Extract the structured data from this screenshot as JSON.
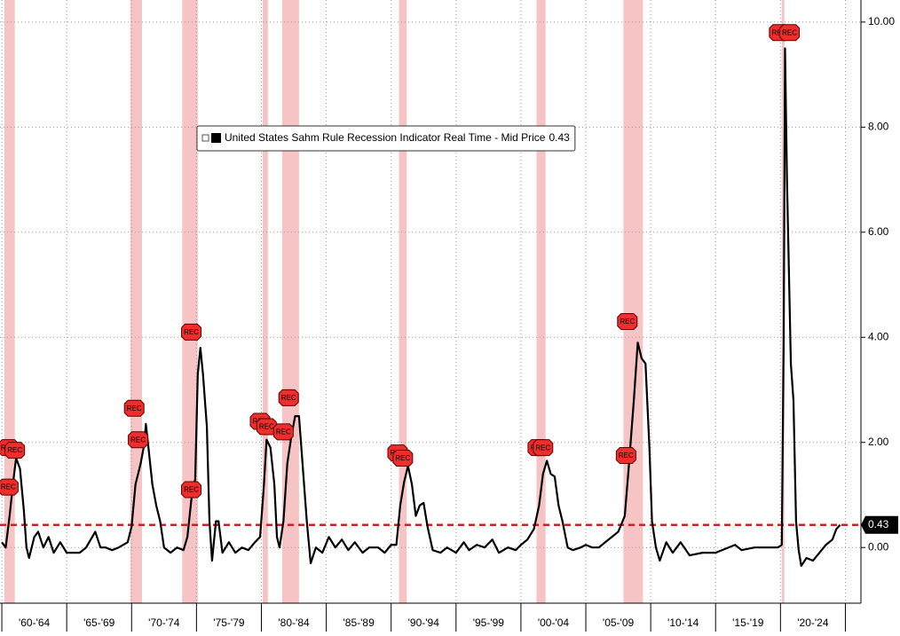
{
  "chart_data": {
    "type": "line",
    "legend_text": "United States Sahm Rule Recession Indicator Real Time - Mid Price",
    "last_value": 0.43,
    "xlim": [
      1959.86,
      2026.2
    ],
    "xticks": [
      1960,
      1965,
      1970,
      1975,
      1980,
      1985,
      1990,
      1995,
      2000,
      2005,
      2010,
      2015,
      2020,
      2025
    ],
    "period_labels": [
      "'60-'64",
      "'65-'69",
      "'70-'74",
      "'75-'79",
      "'80-'84",
      "'85-'89",
      "'90-'94",
      "'95-'99",
      "'00-'04",
      "'05-'09",
      "'10-'14",
      "'15-'19",
      "'20-'24"
    ],
    "ylim": [
      -1.06,
      10.42
    ],
    "yticks": [
      {
        "value": 0,
        "label": "0.00"
      },
      {
        "value": 2,
        "label": "2.00"
      },
      {
        "value": 4,
        "label": "4.00"
      },
      {
        "value": 6,
        "label": "6.00"
      },
      {
        "value": 8,
        "label": "8.00"
      },
      {
        "value": 10,
        "label": "10.00"
      }
    ],
    "grid": true,
    "recession_color": "#f6c4c4",
    "recessions": [
      [
        1960.2,
        1961.0
      ],
      [
        1969.9,
        1970.8
      ],
      [
        1973.9,
        1975.1
      ],
      [
        1980.1,
        1980.5
      ],
      [
        1981.6,
        1982.9
      ],
      [
        1990.6,
        1991.2
      ],
      [
        2001.2,
        2001.9
      ],
      [
        2007.9,
        2009.4
      ],
      [
        2020.1,
        2020.3
      ]
    ],
    "annotations": [
      {
        "label": "REC",
        "x": 1960.5,
        "y": 1.9
      },
      {
        "label": "REC",
        "x": 1961.0,
        "y": 1.85
      },
      {
        "label": "REC",
        "x": 1960.5,
        "y": 1.15
      },
      {
        "label": "REC",
        "x": 1970.2,
        "y": 2.65
      },
      {
        "label": "REC",
        "x": 1970.5,
        "y": 2.05
      },
      {
        "label": "REC",
        "x": 1974.6,
        "y": 4.1
      },
      {
        "label": "REC",
        "x": 1974.6,
        "y": 1.1
      },
      {
        "label": "REC",
        "x": 1979.9,
        "y": 2.4
      },
      {
        "label": "REC",
        "x": 1980.4,
        "y": 2.3
      },
      {
        "label": "REC",
        "x": 1981.7,
        "y": 2.2
      },
      {
        "label": "REC",
        "x": 1982.1,
        "y": 2.85
      },
      {
        "label": "REC",
        "x": 1990.5,
        "y": 1.8
      },
      {
        "label": "REC",
        "x": 1990.9,
        "y": 1.7
      },
      {
        "label": "REC",
        "x": 2001.3,
        "y": 1.9
      },
      {
        "label": "REC",
        "x": 2001.7,
        "y": 1.9
      },
      {
        "label": "REC",
        "x": 2008.2,
        "y": 4.3
      },
      {
        "label": "REC",
        "x": 2008.1,
        "y": 1.75
      },
      {
        "label": "REC",
        "x": 2019.9,
        "y": 9.8
      },
      {
        "label": "REC",
        "x": 2020.7,
        "y": 9.8
      }
    ],
    "series": [
      {
        "name": "United States Sahm Rule Recession Indicator Real Time - Mid Price",
        "color": "#000000",
        "x": [
          1960.0,
          1960.3,
          1960.6,
          1960.9,
          1961.1,
          1961.4,
          1961.7,
          1961.9,
          1962.1,
          1962.5,
          1962.8,
          1963.2,
          1963.6,
          1964.0,
          1964.5,
          1965.0,
          1966.0,
          1966.5,
          1967.2,
          1967.6,
          1968.0,
          1968.5,
          1969.0,
          1969.7,
          1970.0,
          1970.3,
          1970.7,
          1971.0,
          1971.1,
          1971.3,
          1971.6,
          1971.9,
          1972.2,
          1972.5,
          1973.0,
          1973.5,
          1974.0,
          1974.3,
          1974.6,
          1974.9,
          1975.1,
          1975.3,
          1975.5,
          1975.8,
          1976.0,
          1976.2,
          1976.5,
          1976.7,
          1977.0,
          1977.5,
          1978.0,
          1978.5,
          1979.0,
          1979.5,
          1979.9,
          1980.2,
          1980.4,
          1980.7,
          1981.0,
          1981.2,
          1981.4,
          1981.7,
          1982.0,
          1982.3,
          1982.6,
          1982.9,
          1983.2,
          1983.5,
          1983.8,
          1984.2,
          1984.7,
          1985.2,
          1985.7,
          1986.2,
          1986.7,
          1987.2,
          1987.8,
          1988.3,
          1989.0,
          1989.5,
          1990.0,
          1990.4,
          1990.7,
          1991.0,
          1991.3,
          1991.6,
          1991.9,
          1992.2,
          1992.5,
          1992.8,
          1993.2,
          1993.8,
          1994.3,
          1995.0,
          1995.6,
          1996.0,
          1996.6,
          1997.2,
          1997.8,
          1998.3,
          1999.0,
          1999.6,
          2000.0,
          2000.5,
          2001.0,
          2001.4,
          2001.7,
          2002.0,
          2002.3,
          2002.6,
          2002.9,
          2003.2,
          2003.6,
          2004.0,
          2004.6,
          2005.0,
          2005.5,
          2006.0,
          2006.5,
          2007.0,
          2007.5,
          2008.0,
          2008.3,
          2008.7,
          2009.0,
          2009.3,
          2009.6,
          2009.9,
          2010.1,
          2010.4,
          2010.7,
          2011.2,
          2011.7,
          2012.3,
          2013.0,
          2014.0,
          2015.0,
          2016.0,
          2016.5,
          2017.0,
          2018.0,
          2019.0,
          2019.8,
          2020.1,
          2020.25,
          2020.35,
          2020.5,
          2020.8,
          2021.0,
          2021.2,
          2021.4,
          2021.6,
          2022.0,
          2022.5,
          2023.0,
          2023.5,
          2024.0,
          2024.3,
          2024.6
        ],
        "values": [
          0.1,
          0.0,
          0.6,
          1.3,
          1.7,
          1.5,
          0.7,
          0.0,
          -0.2,
          0.2,
          0.3,
          0.0,
          0.2,
          -0.1,
          0.1,
          -0.1,
          -0.1,
          0.0,
          0.3,
          0.0,
          0.0,
          -0.05,
          0.0,
          0.1,
          0.4,
          1.2,
          1.6,
          2.0,
          2.35,
          1.9,
          1.2,
          0.8,
          0.5,
          0.0,
          -0.1,
          0.0,
          -0.05,
          0.2,
          0.9,
          1.3,
          3.3,
          3.8,
          3.3,
          2.3,
          0.5,
          -0.25,
          0.5,
          0.5,
          -0.1,
          0.1,
          -0.1,
          0.0,
          -0.05,
          0.1,
          0.2,
          1.2,
          2.05,
          1.9,
          1.2,
          0.2,
          0.0,
          0.5,
          1.6,
          2.1,
          2.5,
          2.5,
          1.5,
          0.5,
          -0.3,
          0.0,
          -0.1,
          0.2,
          0.0,
          0.15,
          -0.05,
          0.1,
          -0.1,
          0.0,
          0.0,
          -0.1,
          0.05,
          0.05,
          0.8,
          1.25,
          1.55,
          1.2,
          0.6,
          0.8,
          0.85,
          0.4,
          -0.05,
          -0.1,
          0.0,
          -0.1,
          0.1,
          -0.05,
          0.05,
          0.0,
          0.15,
          -0.1,
          0.0,
          -0.05,
          0.05,
          0.15,
          0.35,
          0.8,
          1.4,
          1.65,
          1.4,
          1.35,
          0.8,
          0.5,
          0.0,
          -0.05,
          0.0,
          0.05,
          0.0,
          0.0,
          0.1,
          0.2,
          0.3,
          0.6,
          1.5,
          2.8,
          3.9,
          3.6,
          3.5,
          1.9,
          0.5,
          0.0,
          -0.25,
          0.1,
          -0.1,
          0.1,
          -0.15,
          -0.1,
          -0.1,
          0.0,
          0.05,
          -0.05,
          0.0,
          0.0,
          0.0,
          0.05,
          4.0,
          9.5,
          7.0,
          3.5,
          2.8,
          0.5,
          -0.05,
          -0.35,
          -0.2,
          -0.25,
          -0.1,
          0.05,
          0.15,
          0.35,
          0.43
        ]
      }
    ]
  }
}
